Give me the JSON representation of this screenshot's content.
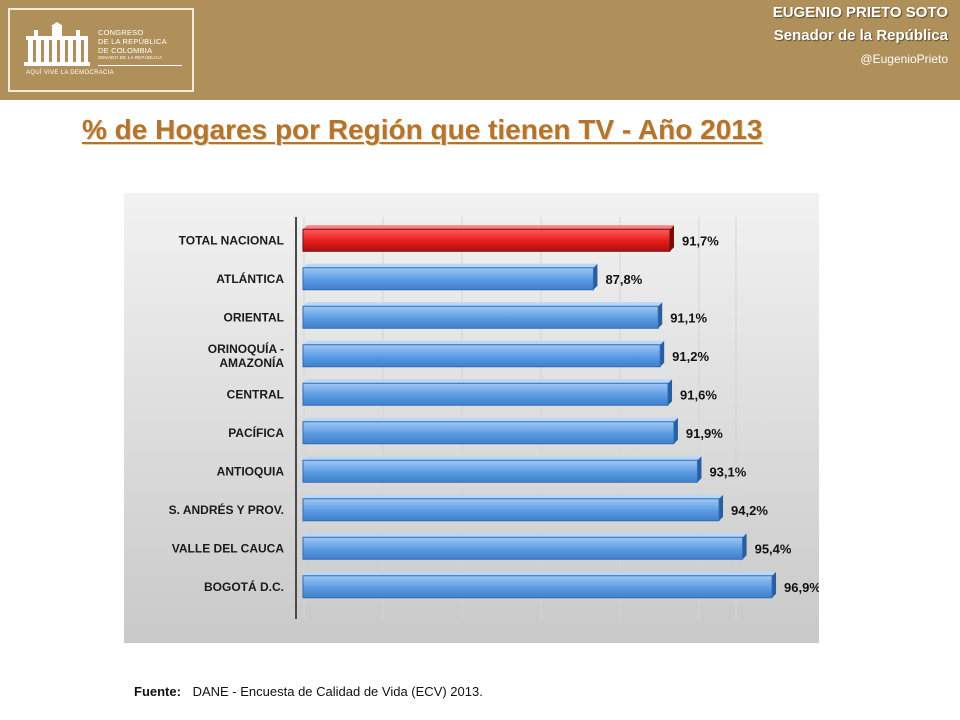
{
  "header": {
    "logo_lines": [
      "CONGRESO",
      "DE LA REPÚBLICA",
      "DE COLOMBIA",
      "SENADO DE LA REPÚBLICA"
    ],
    "logo_motto": "AQUÍ VIVE LA DEMOCRACIA",
    "senator_name": "EUGENIO PRIETO SOTO",
    "senator_title": "Senador de la República",
    "handle": "@EugenioPrieto",
    "band_color": "#b0905a"
  },
  "title": "% de Hogares por Región que tienen TV - Año 2013",
  "source": {
    "label": "Fuente:",
    "text": "DANE - Encuesta de Calidad de Vida (ECV) 2013."
  },
  "chart_data": {
    "type": "bar",
    "orientation": "horizontal",
    "categories": [
      "TOTAL NACIONAL",
      "ATLÁNTICA",
      "ORIENTAL",
      "ORINOQUÍA - AMAZONÍA",
      "CENTRAL",
      "PACÍFICA",
      "ANTIOQUIA",
      "S. ANDRÉS Y PROV.",
      "VALLE DEL CAUCA",
      "BOGOTÁ D.C."
    ],
    "category_label_lines": [
      [
        "TOTAL NACIONAL"
      ],
      [
        "ATLÁNTICA"
      ],
      [
        "ORIENTAL"
      ],
      [
        "ORINOQUÍA -",
        "AMAZONÍA"
      ],
      [
        "CENTRAL"
      ],
      [
        "PACÍFICA"
      ],
      [
        "ANTIOQUIA"
      ],
      [
        "S. ANDRÉS Y PROV."
      ],
      [
        "VALLE DEL CAUCA"
      ],
      [
        "BOGOTÁ D.C."
      ]
    ],
    "values": [
      91.7,
      87.8,
      91.1,
      91.2,
      91.6,
      91.9,
      93.1,
      94.2,
      95.4,
      96.9
    ],
    "data_labels": [
      "91,7%",
      "87,8%",
      "91,1%",
      "91,2%",
      "91,6%",
      "91,9%",
      "93,1%",
      "94,2%",
      "95,4%",
      "96,9%"
    ],
    "highlight_index": 0,
    "xlim": [
      73,
      97
    ],
    "colors": {
      "highlight": "#e41c1c",
      "bar": "#5b9be3",
      "bar_edge": "#2f6cb5"
    },
    "grid": true,
    "legend": false
  }
}
